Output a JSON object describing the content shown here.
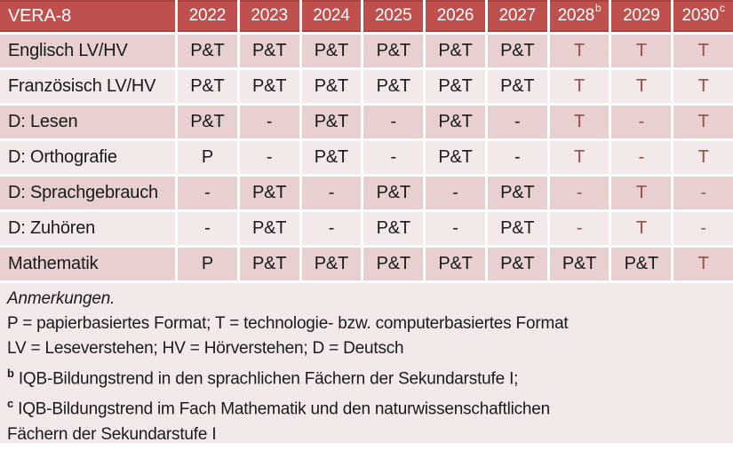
{
  "colors": {
    "header_bg": "#C0504D",
    "header_border": "#A84340",
    "header_text": "#FFFFFF",
    "band_dark": "#E7D0CF",
    "band_light": "#F3E9E8",
    "tech_red": "#9D4B46",
    "body_text": "#1A1A1A"
  },
  "table": {
    "title": "VERA-8",
    "years": [
      {
        "label": "2022"
      },
      {
        "label": "2023"
      },
      {
        "label": "2024"
      },
      {
        "label": "2025"
      },
      {
        "label": "2026"
      },
      {
        "label": "2027"
      },
      {
        "label": "2028",
        "sup": "b"
      },
      {
        "label": "2029"
      },
      {
        "label": "2030",
        "sup": "c"
      }
    ],
    "rows": [
      {
        "label": "Englisch LV/HV",
        "cells": [
          {
            "text": "P&T"
          },
          {
            "text": "P&T"
          },
          {
            "text": "P&T"
          },
          {
            "text": "P&T"
          },
          {
            "text": "P&T"
          },
          {
            "text": "P&T"
          },
          {
            "text": "T",
            "highlight": true
          },
          {
            "text": "T",
            "highlight": true
          },
          {
            "text": "T",
            "highlight": true
          }
        ]
      },
      {
        "label": "Französisch LV/HV",
        "cells": [
          {
            "text": "P&T"
          },
          {
            "text": "P&T"
          },
          {
            "text": "P&T"
          },
          {
            "text": "P&T"
          },
          {
            "text": "P&T"
          },
          {
            "text": "P&T"
          },
          {
            "text": "T",
            "highlight": true
          },
          {
            "text": "T",
            "highlight": true
          },
          {
            "text": "T",
            "highlight": true
          }
        ]
      },
      {
        "label": "D: Lesen",
        "cells": [
          {
            "text": "P&T"
          },
          {
            "text": "-"
          },
          {
            "text": "P&T"
          },
          {
            "text": "-"
          },
          {
            "text": "P&T"
          },
          {
            "text": "-"
          },
          {
            "text": "T",
            "highlight": true
          },
          {
            "text": "-",
            "highlight": true
          },
          {
            "text": "T",
            "highlight": true
          }
        ]
      },
      {
        "label": "D: Orthografie",
        "cells": [
          {
            "text": "P"
          },
          {
            "text": "-"
          },
          {
            "text": "P&T"
          },
          {
            "text": "-"
          },
          {
            "text": "P&T"
          },
          {
            "text": "-"
          },
          {
            "text": "T",
            "highlight": true
          },
          {
            "text": "-",
            "highlight": true
          },
          {
            "text": "T",
            "highlight": true
          }
        ]
      },
      {
        "label": "D: Sprachgebrauch",
        "cells": [
          {
            "text": "-"
          },
          {
            "text": "P&T"
          },
          {
            "text": "-"
          },
          {
            "text": "P&T"
          },
          {
            "text": "-"
          },
          {
            "text": "P&T"
          },
          {
            "text": "-",
            "highlight": true
          },
          {
            "text": "T",
            "highlight": true
          },
          {
            "text": "-",
            "highlight": true
          }
        ]
      },
      {
        "label": "D: Zuhören",
        "cells": [
          {
            "text": "-"
          },
          {
            "text": "P&T"
          },
          {
            "text": "-"
          },
          {
            "text": "P&T"
          },
          {
            "text": "-"
          },
          {
            "text": "P&T"
          },
          {
            "text": "-",
            "highlight": true
          },
          {
            "text": "T",
            "highlight": true
          },
          {
            "text": "-",
            "highlight": true
          }
        ]
      },
      {
        "label": "Mathematik",
        "cells": [
          {
            "text": "P"
          },
          {
            "text": "P&T"
          },
          {
            "text": "P&T"
          },
          {
            "text": "P&T"
          },
          {
            "text": "P&T"
          },
          {
            "text": "P&T"
          },
          {
            "text": "P&T"
          },
          {
            "text": "P&T"
          },
          {
            "text": "T",
            "highlight": true
          }
        ]
      }
    ]
  },
  "notes": {
    "heading": "Anmerkungen.",
    "lines": [
      {
        "text": "P = papierbasiertes Format; T = technologie- bzw. computerbasiertes Format"
      },
      {
        "text": "LV = Leseverstehen; HV = Hörverstehen; D = Deutsch"
      },
      {
        "sup": "b",
        "text": "IQB-Bildungstrend in den sprachlichen Fächern der Sekundarstufe I;"
      },
      {
        "sup": "c",
        "text": "IQB-Bildungstrend im Fach Mathematik und den naturwissenschaftlichen"
      },
      {
        "text": "Fächern der Sekundarstufe I"
      }
    ]
  }
}
